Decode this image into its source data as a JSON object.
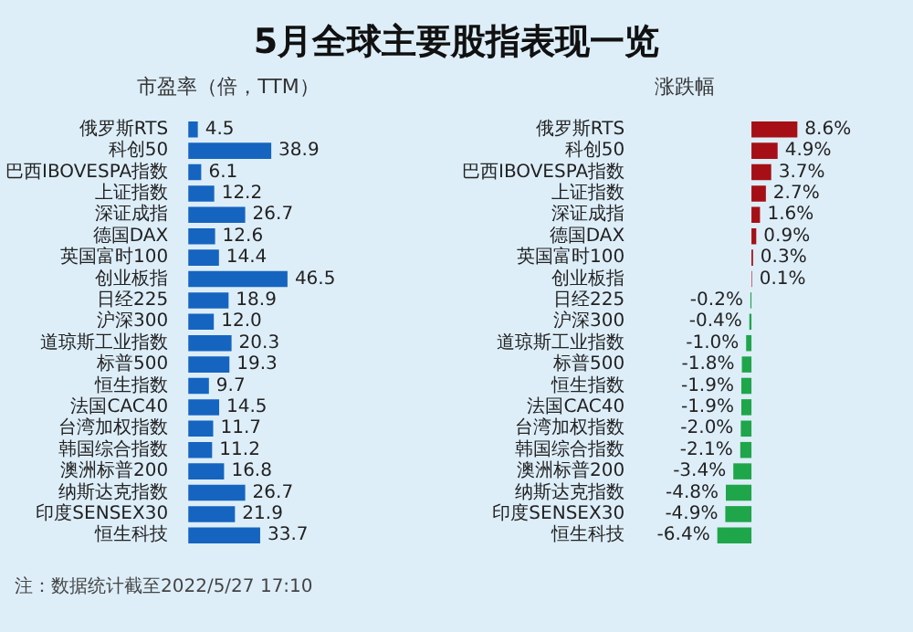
{
  "chart_data": [
    {
      "type": "bar",
      "orientation": "horizontal",
      "title": "5月全球主要股指表现一览",
      "subtitle": "市盈率（倍，TTM）",
      "categories": [
        "俄罗斯RTS",
        "科创50",
        "巴西IBOVESPA指数",
        "上证指数",
        "深证成指",
        "德国DAX",
        "英国富时100",
        "创业板指",
        "日经225",
        "沪深300",
        "道琼斯工业指数",
        "标普500",
        "恒生指数",
        "法国CAC40",
        "台湾加权指数",
        "韩国综合指数",
        "澳洲标普200",
        "纳斯达克指数",
        "印度SENSEX30",
        "恒生科技"
      ],
      "values": [
        4.5,
        38.9,
        6.1,
        12.2,
        26.7,
        12.6,
        14.4,
        46.5,
        18.9,
        12.0,
        20.3,
        19.3,
        9.7,
        14.5,
        11.7,
        11.2,
        16.8,
        26.7,
        21.9,
        33.7
      ],
      "value_labels": [
        "4.5",
        "38.9",
        "6.1",
        "12.2",
        "26.7",
        "12.6",
        "14.4",
        "46.5",
        "18.9",
        "12.0",
        "20.3",
        "19.3",
        "9.7",
        "14.5",
        "11.7",
        "11.2",
        "16.8",
        "26.7",
        "21.9",
        "33.7"
      ],
      "color": "#1565c0",
      "tick_labels": "y",
      "annotations": [
        "注：数据统计截至2022/5/27 17:10"
      ]
    },
    {
      "type": "bar",
      "orientation": "horizontal",
      "title": "涨跌幅",
      "categories": [
        "俄罗斯RTS",
        "科创50",
        "巴西IBOVESPA指数",
        "上证指数",
        "深证成指",
        "德国DAX",
        "英国富时100",
        "创业板指",
        "日经225",
        "沪深300",
        "道琼斯工业指数",
        "标普500",
        "恒生指数",
        "法国CAC40",
        "台湾加权指数",
        "韩国综合指数",
        "澳洲标普200",
        "纳斯达克指数",
        "印度SENSEX30",
        "恒生科技"
      ],
      "values": [
        8.6,
        4.9,
        3.7,
        2.7,
        1.6,
        0.9,
        0.3,
        0.1,
        -0.2,
        -0.4,
        -1.0,
        -1.8,
        -1.9,
        -1.9,
        -2.0,
        -2.1,
        -3.4,
        -4.8,
        -4.9,
        -6.4
      ],
      "value_labels": [
        "8.6%",
        "4.9%",
        "3.7%",
        "2.7%",
        "1.6%",
        "0.9%",
        "0.3%",
        "0.1%",
        "-0.2%",
        "-0.4%",
        "-1.0%",
        "-1.8%",
        "-1.9%",
        "-1.9%",
        "-2.0%",
        "-2.1%",
        "-3.4%",
        "-4.8%",
        "-4.9%",
        "-6.4%"
      ],
      "colors": [
        "#a50f15",
        "#a50f15",
        "#a50f15",
        "#a50f15",
        "#a50f15",
        "#a50f15",
        "#a50f15",
        "#a50f15",
        "#1fa64a",
        "#1fa64a",
        "#1fa64a",
        "#1fa64a",
        "#1fa64a",
        "#1fa64a",
        "#1fa64a",
        "#1fa64a",
        "#1fa64a",
        "#1fa64a",
        "#1fa64a",
        "#1fa64a"
      ],
      "tick_labels": "y"
    }
  ]
}
